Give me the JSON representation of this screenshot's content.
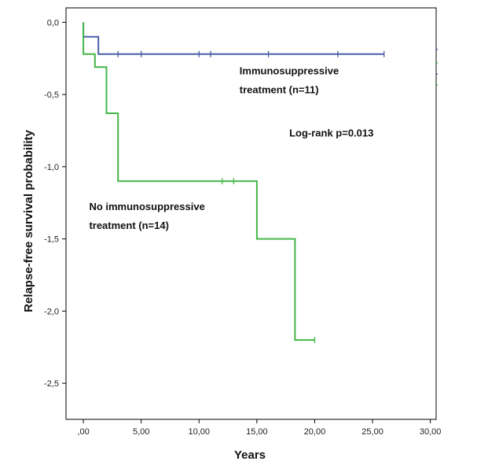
{
  "chart_data": {
    "type": "line",
    "xlabel": "Years",
    "ylabel": "Relapse-free survival probability",
    "xlim": [
      -1.5,
      30.5
    ],
    "ylim": [
      -2.75,
      0.1
    ],
    "x_ticks": [
      {
        "value": 0,
        "label": ",00"
      },
      {
        "value": 5,
        "label": "5,00"
      },
      {
        "value": 10,
        "label": "10,00"
      },
      {
        "value": 15,
        "label": "15,00"
      },
      {
        "value": 20,
        "label": "20,00"
      },
      {
        "value": 25,
        "label": "25,00"
      },
      {
        "value": 30,
        "label": "30,00"
      }
    ],
    "y_ticks": [
      {
        "value": 0,
        "label": "0,0"
      },
      {
        "value": -0.5,
        "label": "-0,5"
      },
      {
        "value": -1,
        "label": "-1,0"
      },
      {
        "value": -1.5,
        "label": "-1,5"
      },
      {
        "value": -2,
        "label": "-2,0"
      },
      {
        "value": -2.5,
        "label": "-2,5"
      }
    ],
    "grid": false,
    "series": [
      {
        "color": "#4a5ea8",
        "steps": [
          [
            0,
            0
          ],
          [
            0,
            -0.1
          ],
          [
            1.3,
            -0.1
          ],
          [
            1.3,
            -0.22
          ],
          [
            26,
            -0.22
          ]
        ],
        "censored": [
          3,
          5,
          10,
          11,
          16,
          22,
          26
        ]
      },
      {
        "color": "#45b649",
        "steps": [
          [
            0,
            0
          ],
          [
            0,
            -0.22
          ],
          [
            1,
            -0.22
          ],
          [
            1,
            -0.31
          ],
          [
            2,
            -0.31
          ],
          [
            2,
            -0.63
          ],
          [
            3,
            -0.63
          ],
          [
            3,
            -1.1
          ],
          [
            15,
            -1.1
          ],
          [
            15,
            -1.5
          ],
          [
            18.3,
            -1.5
          ],
          [
            18.3,
            -2.2
          ],
          [
            20,
            -2.2
          ]
        ],
        "censored": [
          12,
          13,
          20
        ]
      }
    ],
    "annotations": [
      {
        "text": "Immunosuppressive",
        "x": 13.5,
        "y": -0.36
      },
      {
        "text": "treatment (n=11)",
        "x": 13.5,
        "y": -0.49
      },
      {
        "text": "Log-rank p=0.013",
        "x": 17.8,
        "y": -0.79
      },
      {
        "text": "No immunosuppressive",
        "x": 0.5,
        "y": -1.3
      },
      {
        "text": "treatment (n=14)",
        "x": 0.5,
        "y": -1.43
      }
    ]
  }
}
